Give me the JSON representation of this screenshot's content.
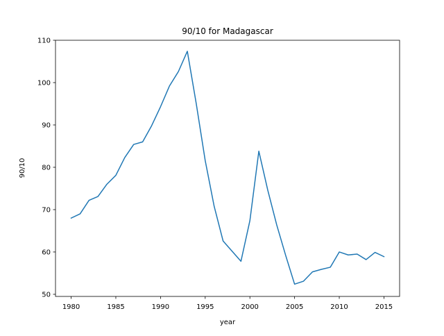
{
  "chart_data": {
    "type": "line",
    "title": "90/10 for Madagascar",
    "xlabel": "year",
    "ylabel": "90/10",
    "xlim": [
      1978.25,
      2016.75
    ],
    "ylim": [
      49.5,
      110
    ],
    "xticks": [
      1980,
      1985,
      1990,
      1995,
      2000,
      2005,
      2010,
      2015
    ],
    "yticks": [
      50,
      60,
      70,
      80,
      90,
      100,
      110
    ],
    "grid": false,
    "line_color": "#1f77b4",
    "series": [
      {
        "x": [
          1980,
          1981,
          1982,
          1983,
          1984,
          1985,
          1986,
          1987,
          1988,
          1989,
          1990,
          1991,
          1992,
          1993,
          1994,
          1995,
          1996,
          1997,
          1998,
          1999,
          2000,
          2001,
          2002,
          2003,
          2004,
          2005,
          2006,
          2007,
          2008,
          2009,
          2010,
          2011,
          2012,
          2013,
          2014,
          2015
        ],
        "y": [
          68.0,
          69.0,
          72.2,
          73.1,
          76.0,
          78.1,
          82.3,
          85.4,
          86.0,
          89.8,
          94.3,
          99.2,
          102.6,
          107.4,
          95.0,
          81.6,
          70.8,
          62.6,
          60.2,
          57.8,
          67.4,
          83.8,
          74.6,
          66.4,
          59.2,
          52.4,
          53.1,
          55.3,
          55.9,
          56.4,
          60.0,
          59.3,
          59.5,
          58.2,
          59.9,
          58.9
        ]
      }
    ]
  }
}
